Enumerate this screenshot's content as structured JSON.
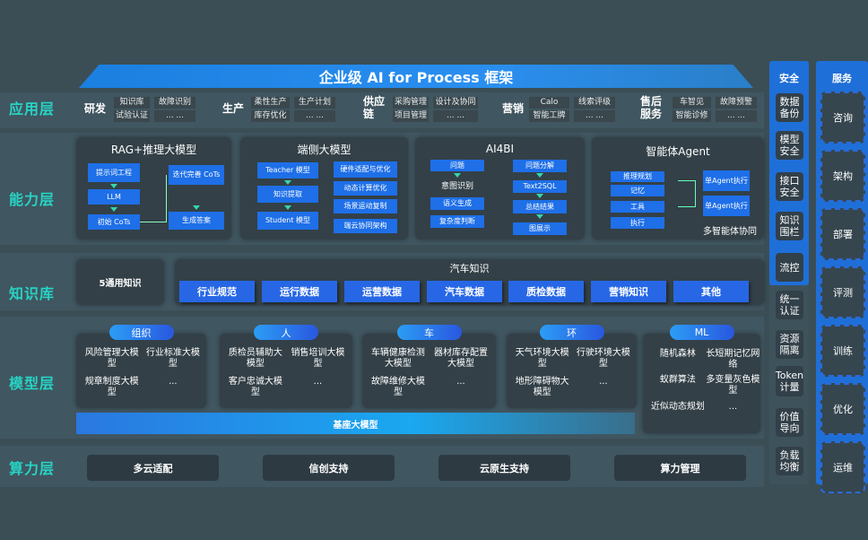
{
  "title": "企业级 AI for Process 框架",
  "layers": {
    "app": "应用层",
    "capability": "能力层",
    "knowledge": "知识库",
    "model": "模型层",
    "compute": "算力层"
  },
  "app_groups": [
    {
      "name": "研发",
      "cells": [
        "知识库",
        "故障识别",
        "试验认证",
        "... ..."
      ]
    },
    {
      "name": "生产",
      "cells": [
        "柔性生产",
        "生产计划",
        "库存优化",
        "... ..."
      ]
    },
    {
      "name": "供应链",
      "cells": [
        "采购管理",
        "设计及协同",
        "项目管理",
        "... ..."
      ]
    },
    {
      "name": "营销",
      "cells": [
        "Calo",
        "线索评级",
        "智能工牌",
        "... ..."
      ]
    },
    {
      "name": "售后服务",
      "cells": [
        "车智见",
        "故障预警",
        "智能诊修",
        "... ..."
      ]
    }
  ],
  "capability": {
    "rag": {
      "title": "RAG+推理大模型",
      "steps": [
        "提示词工程",
        "LLM",
        "初始 CoTs",
        "迭代完善 CoTs",
        "生成答案"
      ]
    },
    "edge": {
      "title": "端侧大模型",
      "flow": [
        "Teacher 模型",
        "知识提取",
        "Student 模型"
      ],
      "features": [
        "硬件适配与优化",
        "动态计算优化",
        "场景运动复制",
        "端云协同架构"
      ]
    },
    "ai4bi": {
      "title": "AI4BI",
      "left": [
        "问题",
        "意图识别",
        "语义生成",
        "复杂度判断"
      ],
      "right": [
        "问题分解",
        "Text2SQL",
        "总结结果",
        "图展示"
      ]
    },
    "agent": {
      "title": "智能体Agent",
      "modules": [
        "推理规划",
        "记忆",
        "工具",
        "执行"
      ],
      "executors": [
        "单Agent执行",
        "单Agent执行"
      ],
      "caption": "多智能体协同"
    }
  },
  "knowledge": {
    "general": "5通用知识",
    "auto_title": "汽车知识",
    "items": [
      "行业规范",
      "运行数据",
      "运营数据",
      "汽车数据",
      "质检数据",
      "营销知识",
      "其他"
    ]
  },
  "models": [
    {
      "header": "组织",
      "cells": [
        "风险管理大模型",
        "行业标准大模型",
        "规章制度大模型",
        "..."
      ]
    },
    {
      "header": "人",
      "cells": [
        "质检员辅助大模型",
        "销售培训大模型",
        "客户忠诚大模型",
        "..."
      ]
    },
    {
      "header": "车",
      "cells": [
        "车辆健康检测大模型",
        "器材库存配置大模型",
        "故障维修大模型",
        "..."
      ]
    },
    {
      "header": "环",
      "cells": [
        "天气环境大模型",
        "行驶环境大模型",
        "地形障碍物大模型",
        "..."
      ]
    },
    {
      "header": "ML",
      "cells": [
        "随机森林",
        "长短期记忆网络",
        "蚁群算法",
        "多变量灰色模型",
        "近似动态规划",
        "..."
      ]
    }
  ],
  "base_model": "基座大模型",
  "compute": [
    "多云适配",
    "信创支持",
    "云原生支持",
    "算力管理"
  ],
  "security": {
    "title": "安全",
    "items": [
      "数据备份",
      "模型安全",
      "接口安全",
      "知识围栏",
      "流控",
      "统一认证",
      "资源隔离",
      "Token计量",
      "价值导向",
      "负载均衡"
    ]
  },
  "services": {
    "title": "服务",
    "items": [
      "咨询",
      "架构",
      "部署",
      "评测",
      "训练",
      "优化",
      "运维"
    ]
  },
  "colors": {
    "accent": "#27d3c4",
    "blue": "#1e6fe8",
    "background": "#3b4e56"
  }
}
